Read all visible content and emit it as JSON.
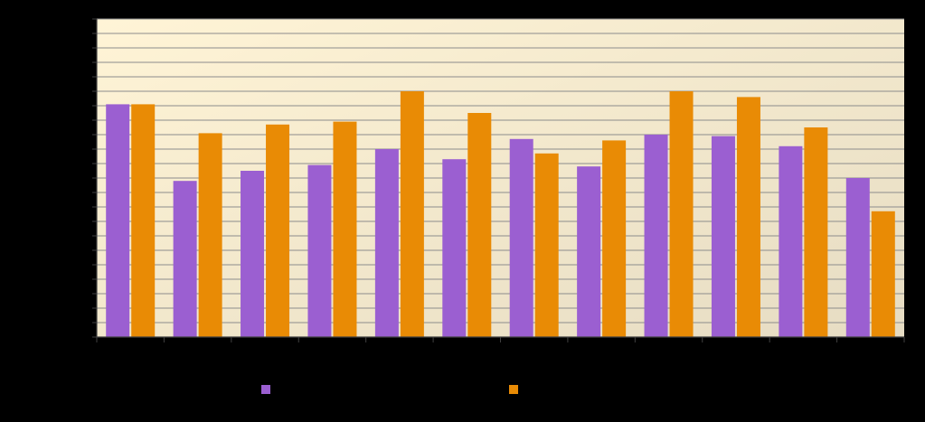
{
  "chart_data": {
    "type": "bar",
    "title": "",
    "xlabel": "",
    "ylabel": "",
    "categories": [
      "",
      "",
      "",
      "",
      "",
      "",
      "",
      "",
      "",
      "",
      "",
      ""
    ],
    "ylim": [
      0,
      22
    ],
    "grid": true,
    "legend_placement": "bottom",
    "background": {
      "from": "#fff4d6",
      "to": "#e6dcc3"
    },
    "series": [
      {
        "color": "#9b5fd1",
        "values": [
          16.1,
          10.8,
          11.5,
          11.9,
          13.0,
          12.3,
          13.7,
          11.8,
          14.0,
          13.9,
          13.2,
          11.0
        ]
      },
      {
        "color": "#e98b05",
        "values": [
          16.1,
          14.1,
          14.7,
          14.9,
          17.0,
          15.5,
          12.7,
          13.6,
          17.0,
          16.6,
          14.5,
          8.7
        ]
      }
    ]
  }
}
